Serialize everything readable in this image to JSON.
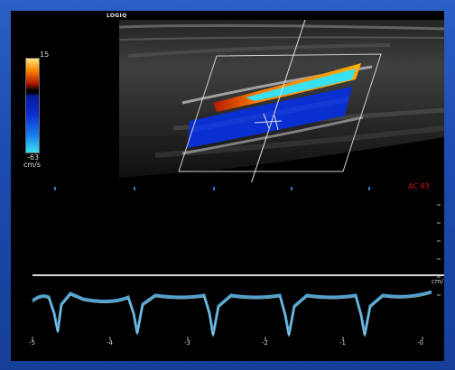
{
  "screen": {
    "logo": "LOGIQ",
    "color_scale": {
      "max_label": "15",
      "min_label": "-63",
      "unit_label": "cm/s",
      "colors": {
        "positive_high": "#ffe680",
        "positive": "#ff8a00",
        "negative": "#0a2fd0",
        "negative_high": "#38e0f0"
      }
    },
    "ac_label": "AC 83",
    "spectral_unit": "cm/",
    "time_axis_labels": [
      "-5",
      "-4",
      "-3",
      "-2",
      "-1",
      "-0"
    ],
    "frame_color": "#1c4cb0"
  }
}
